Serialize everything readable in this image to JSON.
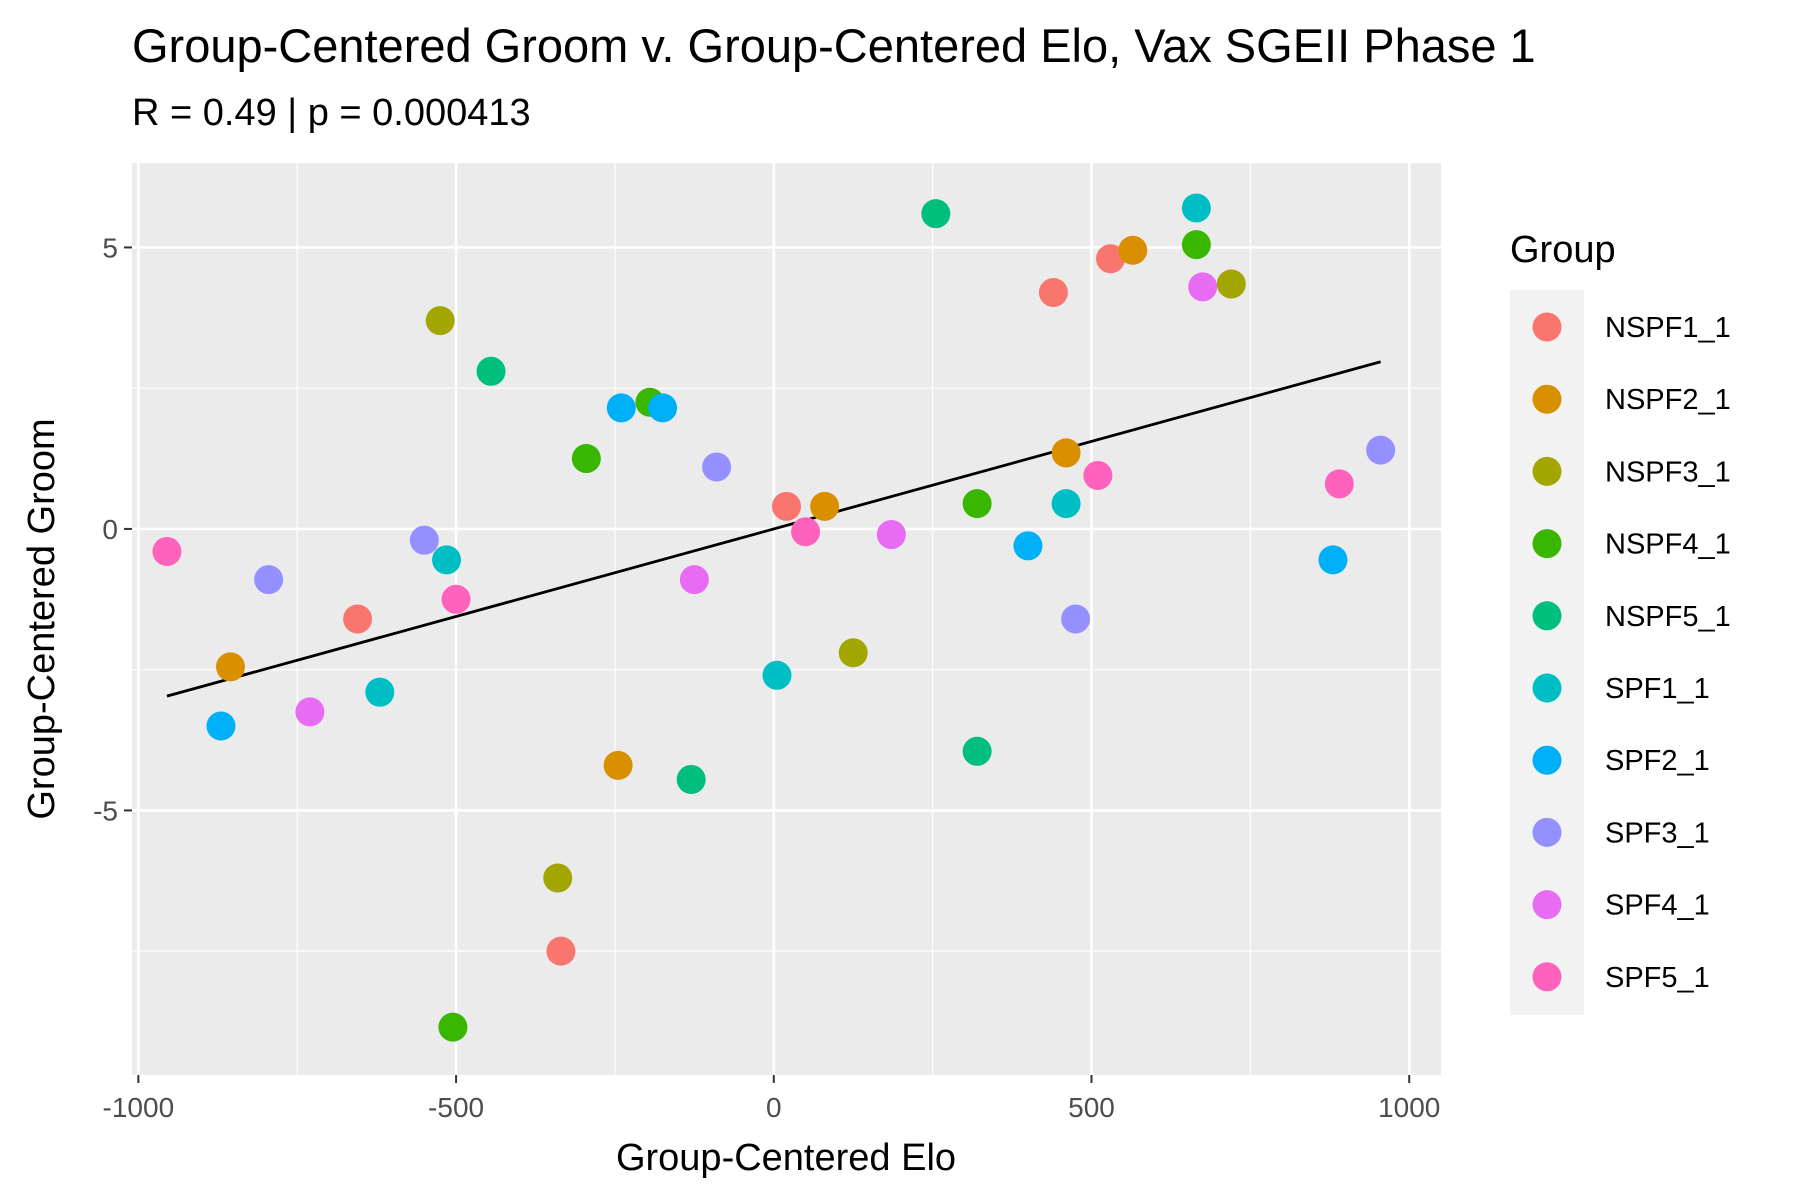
{
  "chart_data": {
    "type": "scatter",
    "title": "Group-Centered Groom v. Group-Centered Elo, Vax SGEII Phase 1",
    "subtitle": "R = 0.49 | p = 0.000413",
    "xlabel": "Group-Centered Elo",
    "ylabel": "Group-Centered Groom",
    "xlim": [
      -1010,
      1050
    ],
    "ylim": [
      -9.7,
      6.5
    ],
    "x_ticks": [
      -1000,
      -500,
      0,
      500,
      1000
    ],
    "y_ticks": [
      -5,
      0,
      5
    ],
    "x_tick_labels": [
      "-1000",
      "-500",
      "0",
      "500",
      "1000"
    ],
    "y_tick_labels": [
      "-5",
      "0",
      "5"
    ],
    "grid": true,
    "legend_title": "Group",
    "legend_position": "right",
    "trend_line": {
      "x": [
        -955,
        955
      ],
      "y": [
        -2.97,
        2.97
      ],
      "color": "#000000"
    },
    "series": [
      {
        "name": "NSPF1_1",
        "color": "#F8766D",
        "points": [
          [
            440,
            4.2
          ],
          [
            530,
            4.8
          ],
          [
            20,
            0.4
          ],
          [
            -655,
            -1.6
          ],
          [
            -335,
            -7.5
          ]
        ]
      },
      {
        "name": "NSPF2_1",
        "color": "#D89000",
        "points": [
          [
            565,
            4.95
          ],
          [
            460,
            1.35
          ],
          [
            80,
            0.4
          ],
          [
            -855,
            -2.45
          ],
          [
            -245,
            -4.2
          ]
        ]
      },
      {
        "name": "NSPF3_1",
        "color": "#A3A500",
        "points": [
          [
            720,
            4.35
          ],
          [
            -525,
            3.7
          ],
          [
            125,
            -2.2
          ],
          [
            -340,
            -6.2
          ]
        ]
      },
      {
        "name": "NSPF4_1",
        "color": "#39B600",
        "points": [
          [
            665,
            5.05
          ],
          [
            -195,
            2.25
          ],
          [
            -295,
            1.25
          ],
          [
            320,
            0.45
          ],
          [
            -505,
            -8.85
          ]
        ]
      },
      {
        "name": "NSPF5_1",
        "color": "#00BF7D",
        "points": [
          [
            255,
            5.6
          ],
          [
            -445,
            2.8
          ],
          [
            320,
            -3.95
          ],
          [
            -130,
            -4.45
          ]
        ]
      },
      {
        "name": "SPF1_1",
        "color": "#00BFC4",
        "points": [
          [
            665,
            5.7
          ],
          [
            460,
            0.45
          ],
          [
            -515,
            -0.55
          ],
          [
            -620,
            -2.9
          ],
          [
            5,
            -2.6
          ]
        ]
      },
      {
        "name": "SPF2_1",
        "color": "#00B0F6",
        "points": [
          [
            -240,
            2.15
          ],
          [
            -175,
            2.15
          ],
          [
            400,
            -0.3
          ],
          [
            880,
            -0.55
          ],
          [
            -870,
            -3.5
          ]
        ]
      },
      {
        "name": "SPF3_1",
        "color": "#9590FF",
        "points": [
          [
            955,
            1.4
          ],
          [
            -90,
            1.1
          ],
          [
            -550,
            -0.2
          ],
          [
            -795,
            -0.9
          ],
          [
            475,
            -1.6
          ]
        ]
      },
      {
        "name": "SPF4_1",
        "color": "#E76BF3",
        "points": [
          [
            675,
            4.3
          ],
          [
            185,
            -0.1
          ],
          [
            -125,
            -0.9
          ],
          [
            -730,
            -3.25
          ]
        ]
      },
      {
        "name": "SPF5_1",
        "color": "#FF62BC",
        "points": [
          [
            510,
            0.95
          ],
          [
            890,
            0.8
          ],
          [
            50,
            -0.05
          ],
          [
            -500,
            -1.25
          ],
          [
            -955,
            -0.4
          ]
        ]
      }
    ]
  }
}
